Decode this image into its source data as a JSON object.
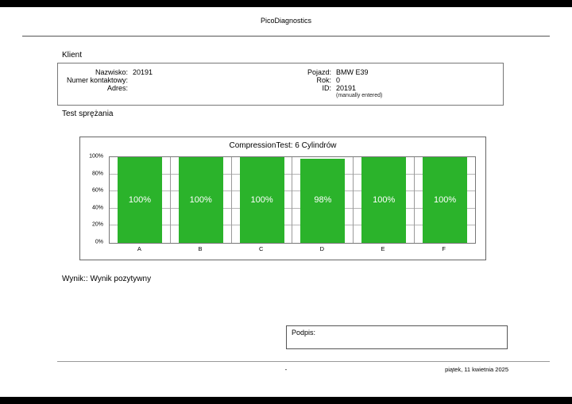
{
  "header": {
    "title": "PicoDiagnostics"
  },
  "client": {
    "section_label": "Klient",
    "left": [
      {
        "label": "Nazwisko:",
        "value": "20191"
      },
      {
        "label": "Numer kontaktowy:",
        "value": ""
      },
      {
        "label": "Adres:",
        "value": ""
      }
    ],
    "right": [
      {
        "label": "Pojazd:",
        "value": "BMW E39"
      },
      {
        "label": "Rok:",
        "value": "0"
      },
      {
        "label": "ID:",
        "value": "20191"
      }
    ],
    "note": "(manually entered)"
  },
  "test": {
    "section_label": "Test sprężania"
  },
  "chart_data": {
    "type": "bar",
    "title": "CompressionTest: 6 Cylindrów",
    "categories": [
      "A",
      "B",
      "C",
      "D",
      "E",
      "F"
    ],
    "values": [
      100,
      100,
      100,
      98,
      100,
      100
    ],
    "value_labels": [
      "100%",
      "100%",
      "100%",
      "98%",
      "100%",
      "100%"
    ],
    "y_ticks": [
      "100%",
      "80%",
      "60%",
      "40%",
      "20%",
      "0%"
    ],
    "ylim": [
      0,
      100
    ],
    "bar_color": "#2bb32b",
    "grid": true,
    "legend": false
  },
  "result": {
    "text": "Wynik:: Wynik pozytywny"
  },
  "signature": {
    "label": "Podpis:"
  },
  "footer": {
    "center": "-",
    "date": "piątek, 11 kwietnia 2025"
  }
}
